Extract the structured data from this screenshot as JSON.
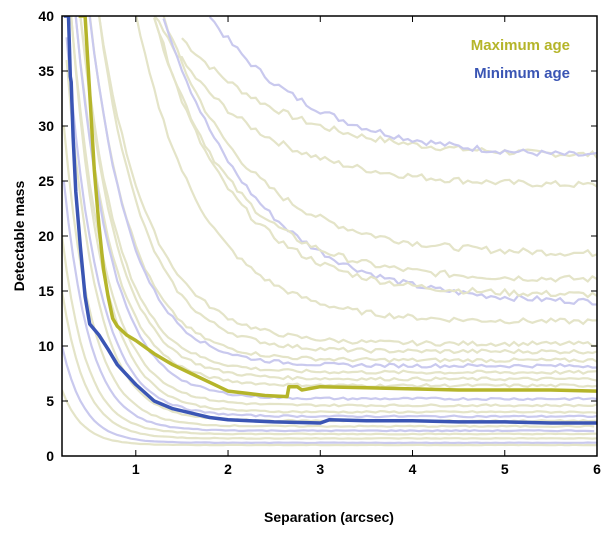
{
  "chart_data": {
    "type": "line",
    "xlabel": "Separation (arcsec)",
    "ylabel": "Detectable mass",
    "xlim": [
      0.2,
      6
    ],
    "ylim": [
      0,
      40
    ],
    "x_ticks": [
      1,
      2,
      3,
      4,
      5,
      6
    ],
    "y_ticks": [
      0,
      5,
      10,
      15,
      20,
      25,
      30,
      35,
      40
    ],
    "grid": false,
    "legend_position": "top-right",
    "legend": [
      {
        "label": "Maximum age",
        "color": "#b5b52a"
      },
      {
        "label": "Minimum age",
        "color": "#3a55b4"
      }
    ],
    "series": [
      {
        "name": "Maximum age",
        "color": "#b5b52a",
        "x": [
          0.38,
          0.45,
          0.5,
          0.55,
          0.6,
          0.65,
          0.7,
          0.75,
          0.8,
          0.9,
          1.0,
          1.2,
          1.4,
          1.6,
          1.8,
          2.0,
          2.2,
          2.4,
          2.64,
          2.66,
          2.75,
          2.8,
          3.0,
          3.5,
          4.0,
          4.5,
          5.0,
          5.5,
          6.0
        ],
        "y": [
          40,
          40,
          33,
          26,
          21,
          17,
          14.5,
          12.5,
          11.8,
          11.0,
          10.5,
          9.3,
          8.3,
          7.5,
          6.7,
          5.9,
          5.7,
          5.5,
          5.4,
          6.3,
          6.3,
          6.0,
          6.3,
          6.2,
          6.1,
          6.0,
          6.0,
          6.0,
          5.9
        ]
      },
      {
        "name": "Minimum age",
        "color": "#3a55b4",
        "x": [
          0.22,
          0.25,
          0.27,
          0.29,
          0.3,
          0.32,
          0.35,
          0.4,
          0.45,
          0.5,
          0.55,
          0.6,
          0.7,
          0.8,
          1.0,
          1.2,
          1.4,
          1.6,
          1.8,
          2.0,
          2.5,
          3.0,
          3.1,
          3.5,
          4.0,
          4.5,
          5.0,
          5.5,
          6.0
        ],
        "y": [
          40,
          40,
          40,
          34.5,
          34.0,
          29,
          24,
          19,
          14.5,
          12.0,
          11.5,
          11.0,
          9.7,
          8.3,
          6.5,
          5.0,
          4.3,
          3.9,
          3.5,
          3.3,
          3.1,
          3.0,
          3.3,
          3.2,
          3.2,
          3.1,
          3.1,
          3.0,
          3.0
        ]
      }
    ],
    "background_series": {
      "khaki_color": "#e4e4c8",
      "lavender_color": "#c9c9ee",
      "curves": [
        {
          "color": "#e4e4c8",
          "x_start": 1.5,
          "plateau": 27.2,
          "k": 0.9,
          "peak": 38
        },
        {
          "color": "#c9c9ee",
          "x_start": 1.8,
          "plateau": 27.0,
          "k": 0.9,
          "peak": 40
        },
        {
          "color": "#e4e4c8",
          "x_start": 1.2,
          "plateau": 24.5,
          "k": 1.0,
          "peak": 40
        },
        {
          "color": "#e4e4c8",
          "x_start": 1.3,
          "plateau": 18.3,
          "k": 1.1,
          "peak": 40
        },
        {
          "color": "#c9c9ee",
          "x_start": 1.3,
          "plateau": 13.8,
          "k": 1.0,
          "peak": 40
        },
        {
          "color": "#e4e4c8",
          "x_start": 1.2,
          "plateau": 16.0,
          "k": 1.2,
          "peak": 40
        },
        {
          "color": "#e4e4c8",
          "x_start": 1.2,
          "plateau": 14.6,
          "k": 1.2,
          "peak": 40
        },
        {
          "color": "#e4e4c8",
          "x_start": 1.0,
          "plateau": 12.2,
          "k": 1.4,
          "peak": 40
        },
        {
          "color": "#e4e4c8",
          "x_start": 0.6,
          "plateau": 10.2,
          "k": 1.8,
          "peak": 40
        },
        {
          "color": "#e4e4c8",
          "x_start": 0.6,
          "plateau": 9.5,
          "k": 2.0,
          "peak": 40
        },
        {
          "color": "#e4e4c8",
          "x_start": 0.5,
          "plateau": 8.7,
          "k": 2.2,
          "peak": 40
        },
        {
          "color": "#c9c9ee",
          "x_start": 0.5,
          "plateau": 8.2,
          "k": 2.2,
          "peak": 40
        },
        {
          "color": "#e4e4c8",
          "x_start": 0.4,
          "plateau": 7.6,
          "k": 2.4,
          "peak": 40
        },
        {
          "color": "#e4e4c8",
          "x_start": 0.4,
          "plateau": 7.0,
          "k": 2.5,
          "peak": 40
        },
        {
          "color": "#e4e4c8",
          "x_start": 0.35,
          "plateau": 6.4,
          "k": 2.6,
          "peak": 40
        },
        {
          "color": "#c9c9ee",
          "x_start": 0.35,
          "plateau": 5.2,
          "k": 2.6,
          "peak": 40
        },
        {
          "color": "#e4e4c8",
          "x_start": 0.3,
          "plateau": 4.6,
          "k": 2.8,
          "peak": 40
        },
        {
          "color": "#e4e4c8",
          "x_start": 0.3,
          "plateau": 4.0,
          "k": 3.0,
          "peak": 40
        },
        {
          "color": "#c9c9ee",
          "x_start": 0.25,
          "plateau": 3.6,
          "k": 3.0,
          "peak": 38
        },
        {
          "color": "#e4e4c8",
          "x_start": 0.25,
          "plateau": 3.2,
          "k": 3.2,
          "peak": 36
        },
        {
          "color": "#e4e4c8",
          "x_start": 0.22,
          "plateau": 2.7,
          "k": 3.4,
          "peak": 30
        },
        {
          "color": "#c9c9ee",
          "x_start": 0.22,
          "plateau": 2.3,
          "k": 3.6,
          "peak": 25
        },
        {
          "color": "#e4e4c8",
          "x_start": 0.2,
          "plateau": 2.0,
          "k": 3.8,
          "peak": 20
        },
        {
          "color": "#e4e4c8",
          "x_start": 0.2,
          "plateau": 1.6,
          "k": 4.0,
          "peak": 15
        },
        {
          "color": "#c9c9ee",
          "x_start": 0.2,
          "plateau": 1.2,
          "k": 4.2,
          "peak": 10
        },
        {
          "color": "#e4e4c8",
          "x_start": 0.2,
          "plateau": 1.0,
          "k": 4.5,
          "peak": 6
        }
      ]
    }
  }
}
